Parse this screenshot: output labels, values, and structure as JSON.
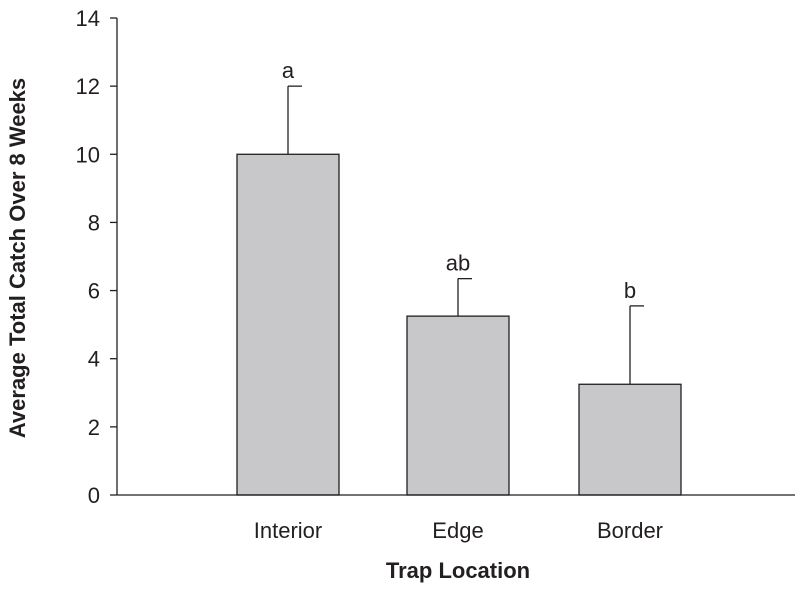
{
  "chart_data": {
    "type": "bar",
    "title": "",
    "xlabel": "Trap Location",
    "ylabel": "Average Total Catch Over 8 Weeks",
    "categories": [
      "Interior",
      "Edge",
      "Border"
    ],
    "values": [
      10.0,
      5.25,
      3.25
    ],
    "error_upper": [
      12.0,
      6.35,
      5.55
    ],
    "significance_labels": [
      "a",
      "ab",
      "b"
    ],
    "ylim": [
      0,
      14
    ],
    "yticks": [
      0,
      2,
      4,
      6,
      8,
      10,
      12,
      14
    ],
    "grid": false,
    "legend": "none",
    "colors": {
      "bar_fill": "#c8c8ca",
      "bar_stroke": "#231f20",
      "axis": "#231f20"
    }
  }
}
